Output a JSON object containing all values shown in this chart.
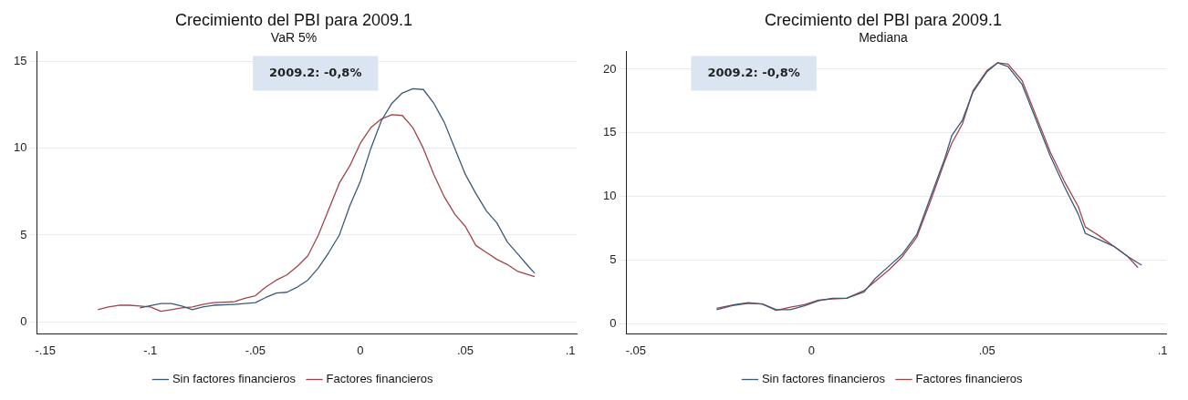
{
  "chart_data": [
    {
      "type": "line",
      "title": "Crecimiento del PBI para 2009.1",
      "subtitle": "VaR 5%",
      "annotations": [
        "2009.2: -0,8%"
      ],
      "xlim": [
        -0.154,
        0.103
      ],
      "xticks": [
        {
          "value": -0.15,
          "label": "-.15"
        },
        {
          "value": -0.1,
          "label": "-.1"
        },
        {
          "value": -0.05,
          "label": "-.05"
        },
        0,
        {
          "value": 0.05,
          "label": ".05"
        },
        {
          "value": 0.1,
          "label": ".1"
        }
      ],
      "ylim": [
        -0.7,
        15.6
      ],
      "yticks": [
        0,
        5,
        10,
        15
      ],
      "grid": "y",
      "legend": "bottom",
      "marker": "none",
      "line_style": "solid",
      "series": [
        {
          "name": "Sin factores financieros",
          "color": "#3a5a78",
          "x": [
            -0.105,
            -0.095,
            -0.09,
            -0.085,
            -0.08,
            -0.075,
            -0.07,
            -0.06,
            -0.05,
            -0.045,
            -0.04,
            -0.035,
            -0.03,
            -0.025,
            -0.02,
            -0.015,
            -0.01,
            -0.005,
            0,
            0.005,
            0.01,
            0.015,
            0.02,
            0.025,
            0.03,
            0.035,
            0.04,
            0.045,
            0.05,
            0.055,
            0.06,
            0.065,
            0.07,
            0.075,
            0.08,
            0.083
          ],
          "values": [
            0.8,
            1.05,
            1.05,
            0.9,
            0.7,
            0.85,
            0.95,
            1.0,
            1.1,
            1.4,
            1.65,
            1.7,
            2.0,
            2.4,
            3.1,
            4.0,
            5.0,
            6.7,
            8.1,
            10,
            11.6,
            12.6,
            13.2,
            13.45,
            13.4,
            12.6,
            11.5,
            10,
            8.5,
            7.4,
            6.4,
            5.7,
            4.6,
            3.9,
            3.2,
            2.8
          ]
        },
        {
          "name": "Factores financieros",
          "color": "#a0454a",
          "x": [
            -0.125,
            -0.12,
            -0.115,
            -0.11,
            -0.105,
            -0.1,
            -0.095,
            -0.09,
            -0.085,
            -0.08,
            -0.075,
            -0.07,
            -0.06,
            -0.055,
            -0.05,
            -0.045,
            -0.04,
            -0.035,
            -0.03,
            -0.025,
            -0.02,
            -0.015,
            -0.01,
            -0.005,
            0,
            0.005,
            0.01,
            0.015,
            0.02,
            0.025,
            0.03,
            0.035,
            0.04,
            0.045,
            0.05,
            0.055,
            0.06,
            0.065,
            0.07,
            0.075,
            0.083
          ],
          "values": [
            0.7,
            0.85,
            0.95,
            0.95,
            0.9,
            0.85,
            0.6,
            0.7,
            0.8,
            0.85,
            1.0,
            1.1,
            1.15,
            1.35,
            1.5,
            2.0,
            2.4,
            2.7,
            3.2,
            3.8,
            5.0,
            6.5,
            8.0,
            9.0,
            10.3,
            11.2,
            11.7,
            11.95,
            11.9,
            11.2,
            10.0,
            8.5,
            7.2,
            6.2,
            5.5,
            4.4,
            4.0,
            3.6,
            3.3,
            2.9,
            2.6
          ]
        }
      ]
    },
    {
      "type": "line",
      "title": "Crecimiento del PBI para 2009.1",
      "subtitle": "Mediana",
      "annotations": [
        "2009.2: -0,8%"
      ],
      "xlim": [
        -0.0527,
        0.101
      ],
      "xticks": [
        {
          "value": -0.05,
          "label": "-.05"
        },
        0,
        {
          "value": 0.05,
          "label": ".05"
        },
        {
          "value": 0.1,
          "label": ".1"
        }
      ],
      "ylim": [
        -0.8,
        21.4
      ],
      "yticks": [
        0,
        5,
        10,
        15,
        20
      ],
      "grid": "y",
      "legend": "bottom",
      "marker": "none",
      "line_style": "solid",
      "series": [
        {
          "name": "Sin factores financieros",
          "color": "#3a5a78",
          "x": [
            -0.027,
            -0.022,
            -0.018,
            -0.014,
            -0.01,
            -0.006,
            -0.002,
            0.002,
            0.006,
            0.01,
            0.015,
            0.018,
            0.022,
            0.026,
            0.03,
            0.034,
            0.038,
            0.04,
            0.043,
            0.046,
            0.05,
            0.053,
            0.056,
            0.06,
            0.064,
            0.068,
            0.072,
            0.076,
            0.078,
            0.082,
            0.086,
            0.09,
            0.094
          ],
          "values": [
            1.1,
            1.45,
            1.6,
            1.55,
            1.1,
            1.1,
            1.4,
            1.8,
            2.0,
            2.0,
            2.5,
            3.5,
            4.5,
            5.5,
            7.0,
            10,
            13,
            14.8,
            16,
            18.2,
            19.8,
            20.5,
            20.2,
            18.8,
            16,
            13.2,
            10.8,
            8.6,
            7.1,
            6.6,
            6.1,
            5.3,
            4.6
          ]
        },
        {
          "name": "Factores financieros",
          "color": "#a0454a",
          "x": [
            -0.027,
            -0.022,
            -0.018,
            -0.014,
            -0.01,
            -0.006,
            -0.002,
            0.002,
            0.006,
            0.01,
            0.015,
            0.018,
            0.022,
            0.026,
            0.03,
            0.034,
            0.038,
            0.04,
            0.043,
            0.046,
            0.05,
            0.053,
            0.056,
            0.06,
            0.064,
            0.068,
            0.072,
            0.076,
            0.078,
            0.082,
            0.086,
            0.09,
            0.093
          ],
          "values": [
            1.2,
            1.5,
            1.65,
            1.55,
            1.05,
            1.3,
            1.5,
            1.85,
            1.95,
            2.0,
            2.6,
            3.3,
            4.2,
            5.3,
            6.8,
            9.7,
            12.8,
            14.2,
            15.7,
            18.3,
            19.9,
            20.5,
            20.4,
            19.1,
            16.3,
            13.5,
            11.2,
            9.2,
            7.6,
            6.9,
            6.1,
            5.3,
            4.4
          ]
        }
      ]
    }
  ]
}
